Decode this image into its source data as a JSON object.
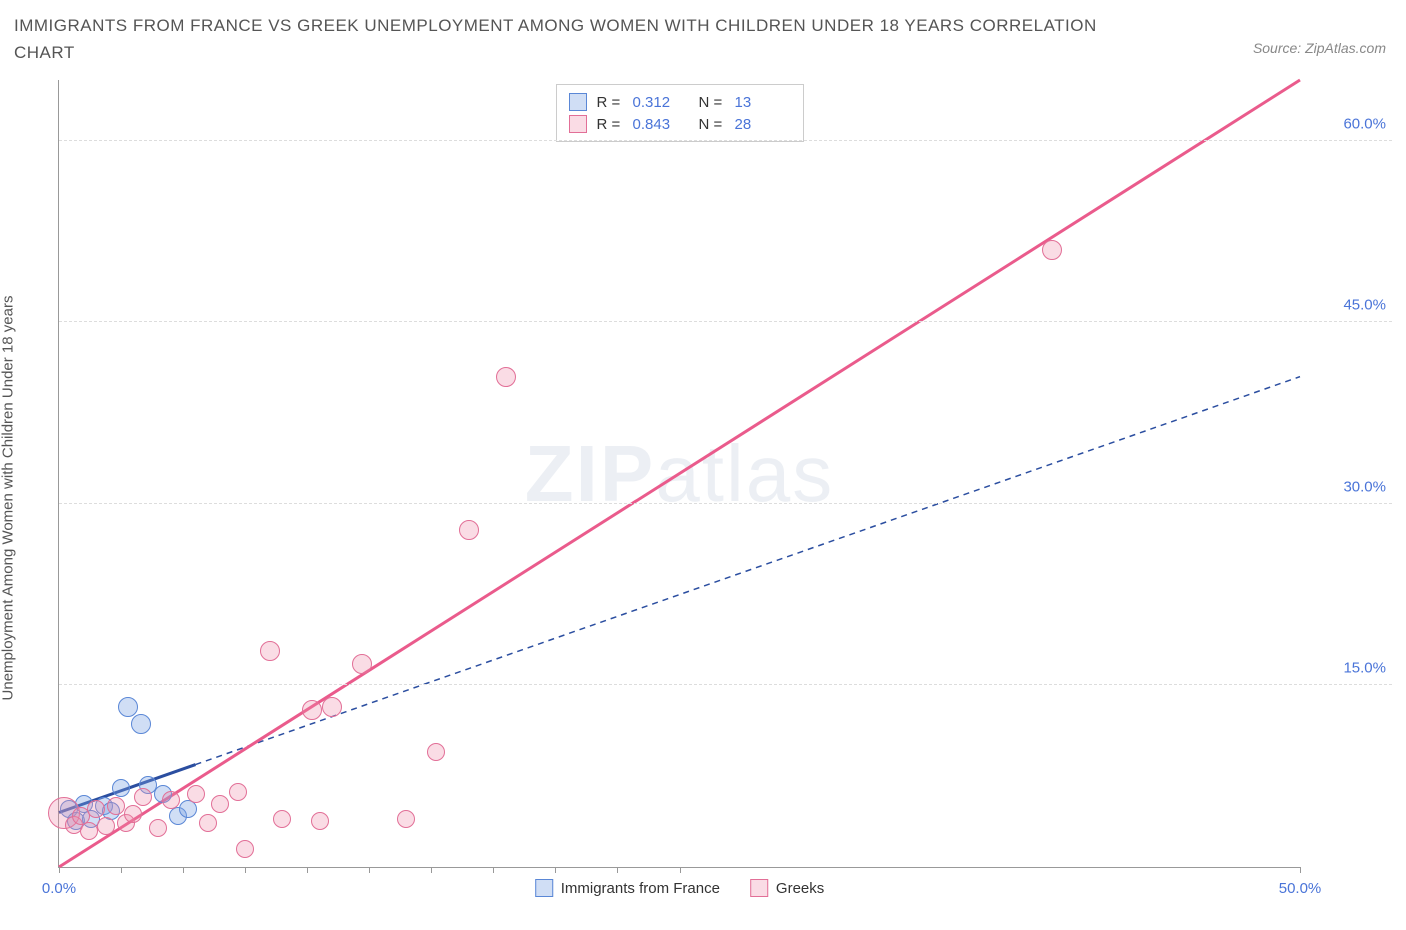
{
  "title": "IMMIGRANTS FROM FRANCE VS GREEK UNEMPLOYMENT AMONG WOMEN WITH CHILDREN UNDER 18 YEARS CORRELATION CHART",
  "source_label": "Source: ZipAtlas.com",
  "y_axis_label": "Unemployment Among Women with Children Under 18 years",
  "watermark_bold": "ZIP",
  "watermark_rest": "atlas",
  "chart": {
    "type": "scatter",
    "xlim": [
      0,
      50
    ],
    "ylim": [
      0,
      65
    ],
    "x_ticks": [
      0,
      5,
      25,
      50
    ],
    "x_tick_labels": [
      "0.0%",
      "",
      "",
      "50.0%"
    ],
    "x_minor_ticks": [
      2.5,
      7.5,
      10,
      12.5,
      15,
      17.5,
      20,
      22.5
    ],
    "y_ticks": [
      15,
      30,
      45,
      60
    ],
    "y_tick_labels": [
      "15.0%",
      "30.0%",
      "45.0%",
      "60.0%"
    ],
    "background_color": "#ffffff",
    "grid_color": "#dddddd",
    "axis_color": "#999999",
    "tick_label_color": "#4a74d8",
    "title_color": "#555555",
    "title_fontsize": 17,
    "label_fontsize": 15
  },
  "series": [
    {
      "name": "Immigrants from France",
      "fill": "rgba(120,160,225,0.35)",
      "stroke": "#5a87d6",
      "trend_color": "#2b4ea0",
      "trend_style": "solid-then-dashed",
      "trend_solid_until_x": 5.5,
      "slope": 0.72,
      "intercept": 4.5,
      "R": 0.312,
      "N": 13,
      "points": [
        {
          "x": 0.4,
          "y": 4.8,
          "r": 9
        },
        {
          "x": 0.7,
          "y": 3.8,
          "r": 9
        },
        {
          "x": 1.0,
          "y": 5.2,
          "r": 9
        },
        {
          "x": 1.3,
          "y": 4.0,
          "r": 9
        },
        {
          "x": 1.8,
          "y": 5.0,
          "r": 9
        },
        {
          "x": 2.1,
          "y": 4.6,
          "r": 9
        },
        {
          "x": 2.5,
          "y": 6.5,
          "r": 9
        },
        {
          "x": 2.8,
          "y": 13.2,
          "r": 10
        },
        {
          "x": 3.3,
          "y": 11.8,
          "r": 10
        },
        {
          "x": 3.6,
          "y": 6.8,
          "r": 9
        },
        {
          "x": 4.2,
          "y": 6.0,
          "r": 9
        },
        {
          "x": 4.8,
          "y": 4.2,
          "r": 9
        },
        {
          "x": 5.2,
          "y": 4.8,
          "r": 9
        }
      ]
    },
    {
      "name": "Greeks",
      "fill": "rgba(240,140,170,0.30)",
      "stroke": "#e26f97",
      "trend_color": "#ea5b8c",
      "trend_style": "solid",
      "slope": 1.3,
      "intercept": 0.0,
      "R": 0.843,
      "N": 28,
      "points": [
        {
          "x": 0.2,
          "y": 4.5,
          "r": 16
        },
        {
          "x": 0.6,
          "y": 3.5,
          "r": 9
        },
        {
          "x": 0.9,
          "y": 4.2,
          "r": 9
        },
        {
          "x": 1.2,
          "y": 3.0,
          "r": 9
        },
        {
          "x": 1.5,
          "y": 4.8,
          "r": 9
        },
        {
          "x": 1.9,
          "y": 3.4,
          "r": 9
        },
        {
          "x": 2.3,
          "y": 5.0,
          "r": 9
        },
        {
          "x": 2.7,
          "y": 3.6,
          "r": 9
        },
        {
          "x": 3.0,
          "y": 4.4,
          "r": 9
        },
        {
          "x": 3.4,
          "y": 5.8,
          "r": 9
        },
        {
          "x": 4.0,
          "y": 3.2,
          "r": 9
        },
        {
          "x": 4.5,
          "y": 5.5,
          "r": 9
        },
        {
          "x": 5.5,
          "y": 6.0,
          "r": 9
        },
        {
          "x": 6.0,
          "y": 3.6,
          "r": 9
        },
        {
          "x": 6.5,
          "y": 5.2,
          "r": 9
        },
        {
          "x": 7.2,
          "y": 6.2,
          "r": 9
        },
        {
          "x": 7.5,
          "y": 1.5,
          "r": 9
        },
        {
          "x": 8.5,
          "y": 17.8,
          "r": 10
        },
        {
          "x": 9.0,
          "y": 4.0,
          "r": 9
        },
        {
          "x": 10.2,
          "y": 13.0,
          "r": 10
        },
        {
          "x": 10.5,
          "y": 3.8,
          "r": 9
        },
        {
          "x": 11.0,
          "y": 13.2,
          "r": 10
        },
        {
          "x": 12.2,
          "y": 16.8,
          "r": 10
        },
        {
          "x": 14.0,
          "y": 4.0,
          "r": 9
        },
        {
          "x": 15.2,
          "y": 9.5,
          "r": 9
        },
        {
          "x": 16.5,
          "y": 27.8,
          "r": 10
        },
        {
          "x": 18.0,
          "y": 40.5,
          "r": 10
        },
        {
          "x": 40.0,
          "y": 51.0,
          "r": 10
        }
      ]
    }
  ],
  "legend_bottom": [
    {
      "swatch_fill": "rgba(120,160,225,0.35)",
      "swatch_stroke": "#5a87d6",
      "label": "Immigrants from France"
    },
    {
      "swatch_fill": "rgba(240,140,170,0.30)",
      "swatch_stroke": "#e26f97",
      "label": "Greeks"
    }
  ]
}
